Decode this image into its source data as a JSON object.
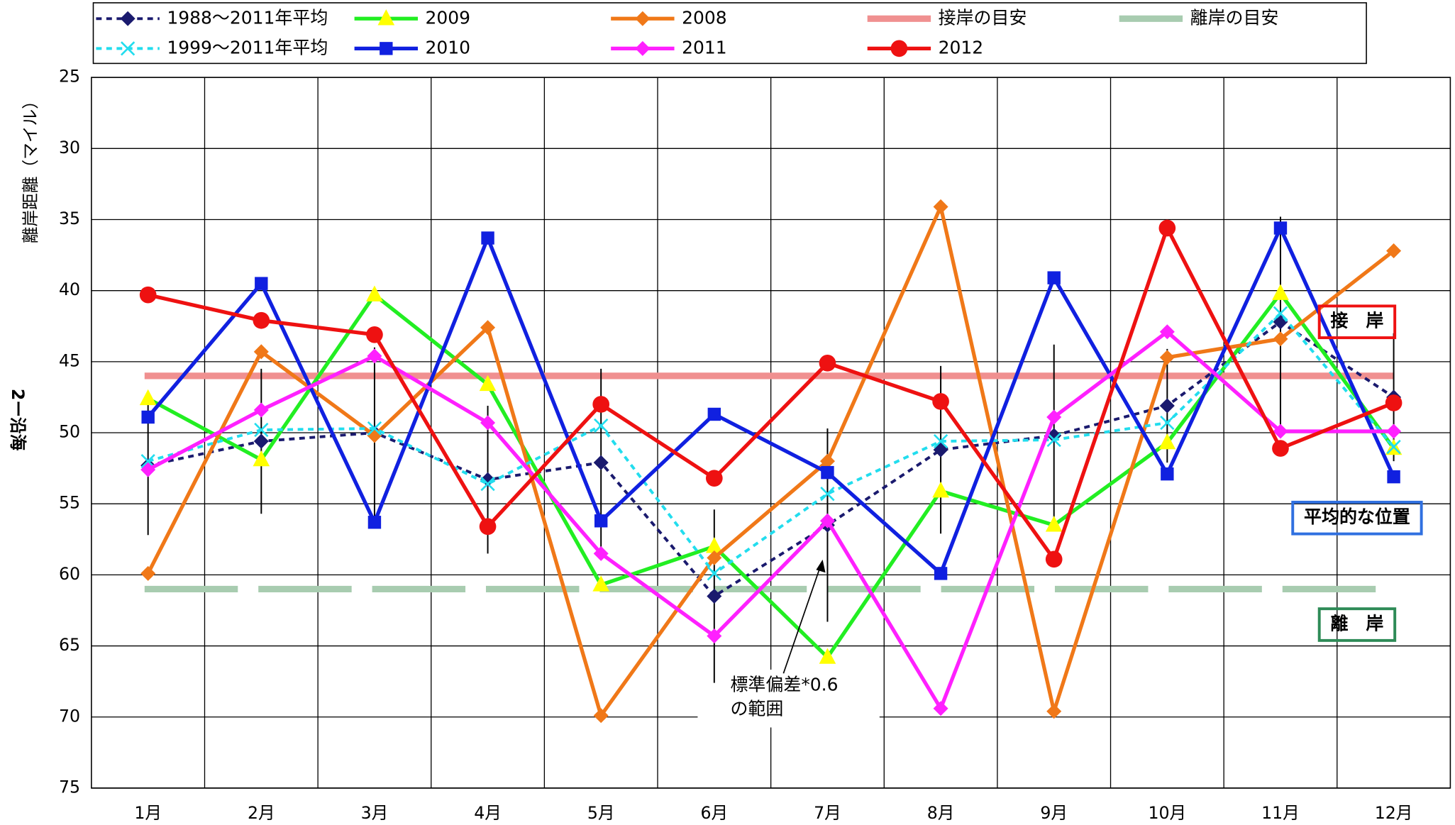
{
  "chart_data": {
    "type": "line",
    "y_label": "離岸距離（マイル）",
    "y_label2": "2ー沿海",
    "categories": [
      "1月",
      "2月",
      "3月",
      "4月",
      "5月",
      "6月",
      "7月",
      "8月",
      "9月",
      "10月",
      "11月",
      "12月"
    ],
    "ylim": [
      25,
      75
    ],
    "yticks": [
      25,
      30,
      35,
      40,
      45,
      50,
      55,
      60,
      65,
      70,
      75
    ],
    "y_reversed": true,
    "grid": true,
    "series": [
      {
        "name": "1988〜2011年平均",
        "color": "#1a1a6e",
        "dash": "6,5",
        "marker": "diamond",
        "width": 3,
        "values": [
          52.3,
          50.6,
          50.0,
          53.3,
          52.1,
          61.5,
          56.5,
          51.2,
          50.2,
          48.1,
          42.2,
          47.5
        ],
        "error": [
          4.9,
          5.1,
          6.0,
          5.2,
          6.6,
          6.1,
          6.8,
          5.9,
          6.4,
          4.0,
          7.4,
          4.5
        ]
      },
      {
        "name": "2009",
        "color": "#22ee22",
        "dash": "",
        "marker": "triangle",
        "marker_color": "#ffff00",
        "width": 4,
        "values": [
          47.6,
          51.9,
          40.3,
          46.6,
          60.7,
          58.0,
          65.8,
          54.1,
          56.5,
          50.7,
          40.2,
          51.1
        ]
      },
      {
        "name": "2008",
        "color": "#f07818",
        "dash": "",
        "marker": "diamond",
        "width": 4,
        "values": [
          59.9,
          44.3,
          50.2,
          42.6,
          69.9,
          58.8,
          52.0,
          34.1,
          69.6,
          44.7,
          43.4,
          37.2
        ]
      },
      {
        "name": "1999〜2011年平均",
        "color": "#22ddee",
        "dash": "6,5",
        "marker": "x",
        "width": 3,
        "values": [
          52.0,
          49.8,
          49.7,
          53.6,
          49.5,
          59.9,
          54.3,
          50.6,
          50.5,
          49.3,
          41.6,
          51.0
        ]
      },
      {
        "name": "2010",
        "color": "#1020e0",
        "dash": "",
        "marker": "square",
        "width": 4,
        "values": [
          48.9,
          39.5,
          56.3,
          36.3,
          56.2,
          48.7,
          52.8,
          59.9,
          39.1,
          52.9,
          35.6,
          53.1
        ]
      },
      {
        "name": "2011",
        "color": "#ff20ff",
        "dash": "",
        "marker": "diamond",
        "width": 4,
        "values": [
          52.6,
          48.4,
          44.6,
          49.3,
          58.5,
          64.3,
          56.2,
          69.4,
          48.9,
          42.9,
          49.9,
          49.9
        ]
      },
      {
        "name": "2012",
        "color": "#ee1111",
        "dash": "",
        "marker": "circle",
        "width": 4,
        "values": [
          40.3,
          42.1,
          43.1,
          56.6,
          48.0,
          53.2,
          45.1,
          47.8,
          58.9,
          35.6,
          51.1,
          47.9
        ]
      }
    ],
    "reference_lines": [
      {
        "name": "接岸の目安",
        "value": 46.0,
        "color": "#f09090",
        "dash": ""
      },
      {
        "name": "離岸の目安",
        "value": 61.0,
        "color": "#a8ccb0",
        "dash": "100,22"
      }
    ],
    "annotations": [
      {
        "text": "接　岸",
        "color": "#ee1111",
        "value": 42.2
      },
      {
        "text": "平均的な位置",
        "color": "#3070e0",
        "value": 56.0
      },
      {
        "text": "離　岸",
        "color": "#2e8b57",
        "value": 63.5
      }
    ],
    "error_note": [
      "標準偏差*0.6",
      "の範囲"
    ]
  }
}
